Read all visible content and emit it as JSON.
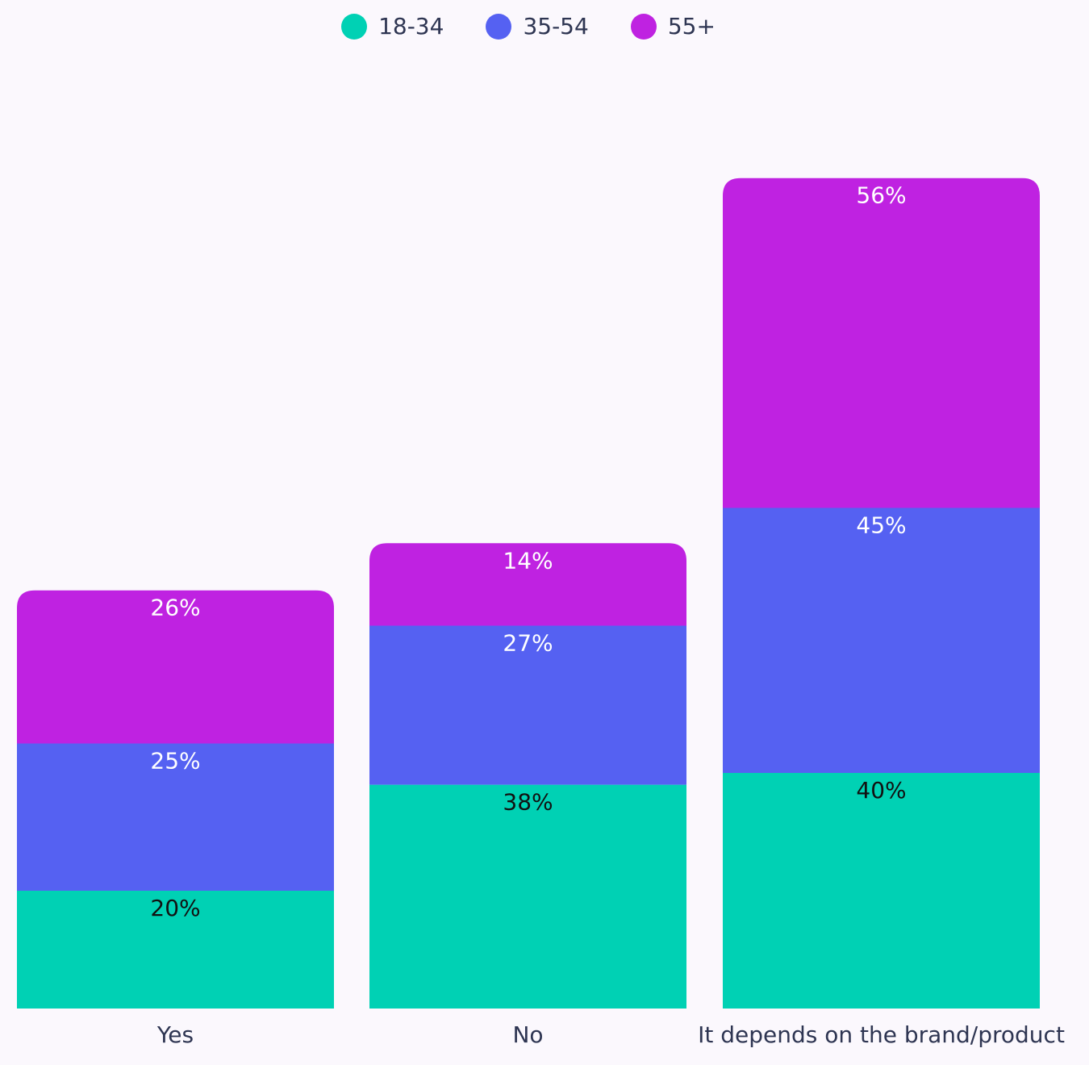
{
  "chart_data": {
    "type": "bar",
    "stacked": true,
    "categories": [
      "Yes",
      "No",
      "It depends on the brand/product"
    ],
    "series": [
      {
        "name": "18-34",
        "color": "#00d1b4",
        "label_color": "#111111",
        "values": [
          20,
          38,
          40
        ],
        "labels": [
          "20%",
          "38%",
          "40%"
        ]
      },
      {
        "name": "35-54",
        "color": "#5561f2",
        "label_color": "#ffffff",
        "values": [
          25,
          27,
          45
        ],
        "labels": [
          "25%",
          "27%",
          "45%"
        ]
      },
      {
        "name": "55+",
        "color": "#bf22e1",
        "label_color": "#ffffff",
        "values": [
          26,
          14,
          56
        ],
        "labels": [
          "26%",
          "14%",
          "56%"
        ]
      }
    ],
    "legend_position": "top-center",
    "grid": false,
    "axes_visible": false
  }
}
